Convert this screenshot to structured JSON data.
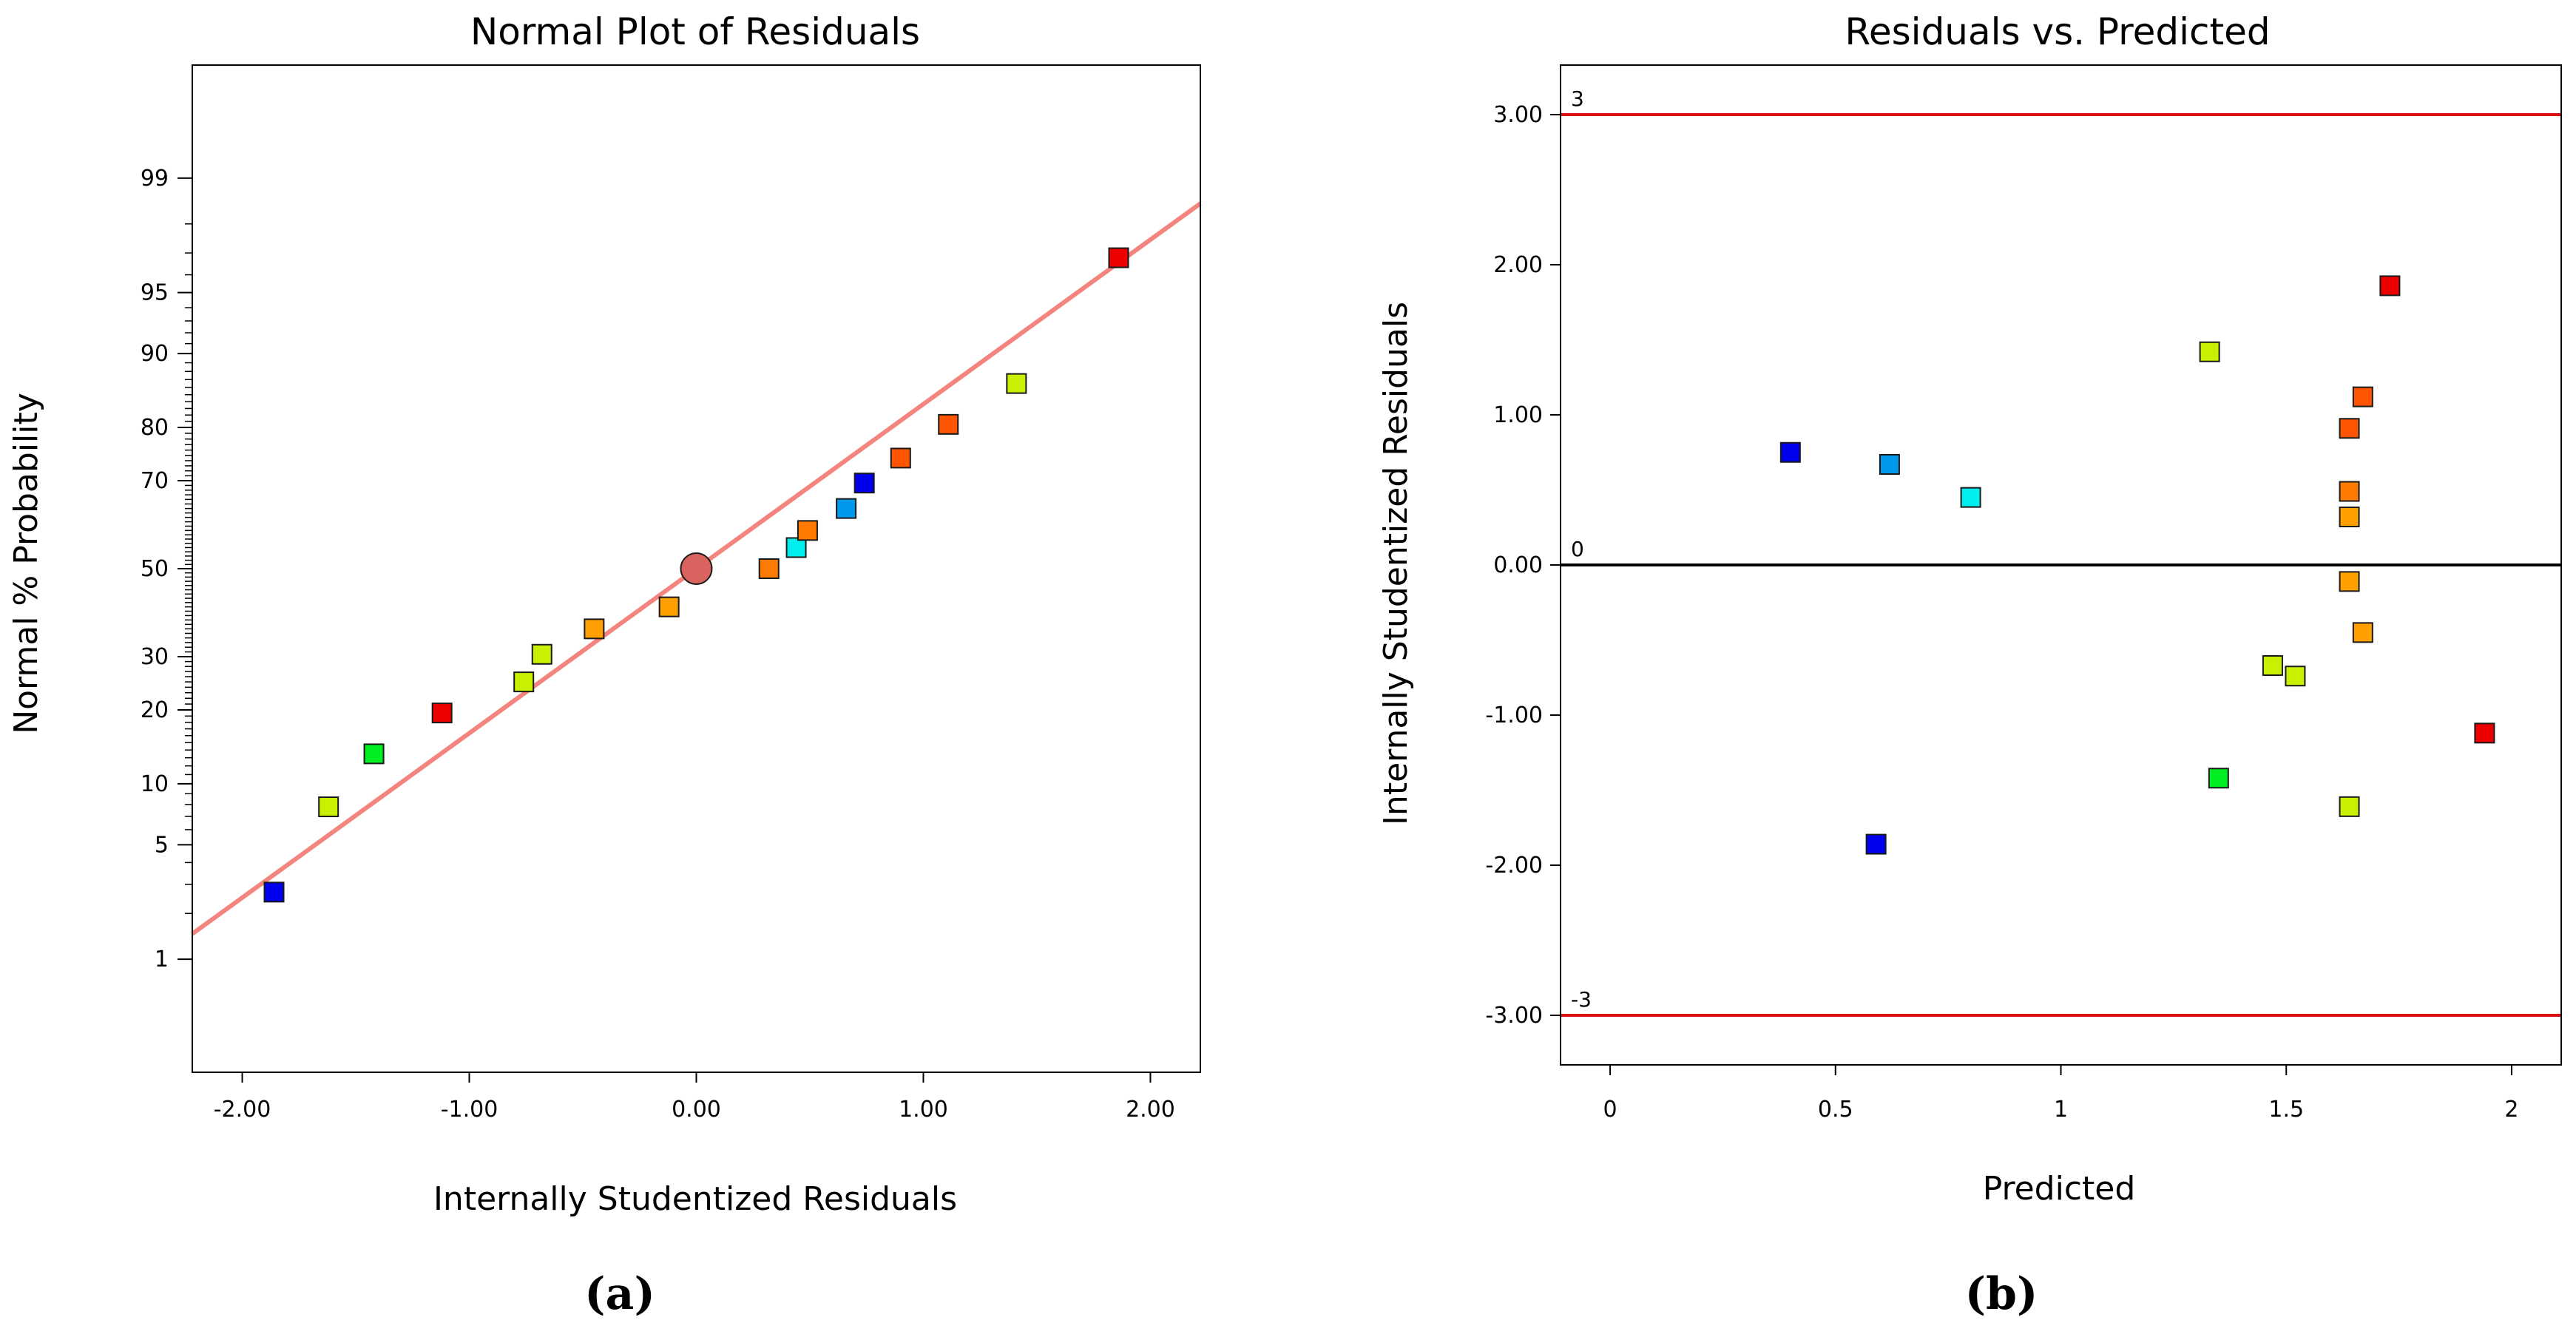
{
  "chart_data": [
    {
      "id": "a",
      "type": "scatter",
      "title": "Normal Plot of Residuals",
      "xlabel": "Internally Studentized Residuals",
      "ylabel": "Normal % Probability",
      "caption": "(a)",
      "xlim": [
        -2.22,
        2.22
      ],
      "y_scale": "normal-probability",
      "ylim_z": [
        -3.0,
        3.0
      ],
      "x_ticks": [
        -2.0,
        -1.0,
        0.0,
        1.0,
        2.0
      ],
      "x_tick_labels": [
        "-2.00",
        "-1.00",
        "0.00",
        "1.00",
        "2.00"
      ],
      "y_ticks": [
        1,
        5,
        10,
        20,
        30,
        50,
        70,
        80,
        90,
        95,
        99
      ],
      "y_tick_labels": [
        "1",
        "5",
        "10",
        "20",
        "30",
        "50",
        "70",
        "80",
        "90",
        "95",
        "99"
      ],
      "y_minor_ticks": [
        2,
        3,
        4,
        6,
        7,
        8,
        9,
        11,
        12,
        13,
        14,
        15,
        16,
        17,
        18,
        19,
        21,
        22,
        23,
        24,
        25,
        26,
        27,
        28,
        29,
        31,
        32,
        33,
        34,
        35,
        36,
        37,
        38,
        39,
        40,
        41,
        42,
        43,
        44,
        45,
        46,
        47,
        48,
        49,
        51,
        52,
        53,
        54,
        55,
        56,
        57,
        58,
        59,
        60,
        61,
        62,
        63,
        64,
        65,
        66,
        67,
        68,
        69,
        71,
        72,
        73,
        74,
        75,
        76,
        77,
        78,
        79,
        81,
        82,
        83,
        84,
        85,
        86,
        87,
        88,
        89,
        91,
        92,
        93,
        94,
        96,
        97,
        98
      ],
      "fit_line": {
        "x0": -2.22,
        "x1": 2.22,
        "z_per_x": 0.98,
        "color": "#f4857e"
      },
      "center_marker": {
        "x": 0.0,
        "p": 50,
        "color": "#d9635f"
      },
      "points": [
        {
          "x": -1.86,
          "p": 2.7,
          "color": "#0000ee"
        },
        {
          "x": -1.62,
          "p": 7.8,
          "color": "#c8f000"
        },
        {
          "x": -1.42,
          "p": 13.5,
          "color": "#00ee22"
        },
        {
          "x": -1.12,
          "p": 19.5,
          "color": "#ee0000"
        },
        {
          "x": -0.76,
          "p": 25.0,
          "color": "#c8f000"
        },
        {
          "x": -0.68,
          "p": 30.5,
          "color": "#c8f000"
        },
        {
          "x": -0.45,
          "p": 36.0,
          "color": "#ffa000"
        },
        {
          "x": -0.12,
          "p": 41.0,
          "color": "#ffa000"
        },
        {
          "x": 0.32,
          "p": 50.0,
          "color": "#ff7a00"
        },
        {
          "x": 0.44,
          "p": 55.0,
          "color": "#00eeee"
        },
        {
          "x": 0.49,
          "p": 59.0,
          "color": "#ff7a00"
        },
        {
          "x": 0.66,
          "p": 64.0,
          "color": "#0099ee"
        },
        {
          "x": 0.74,
          "p": 69.5,
          "color": "#0000ee"
        },
        {
          "x": 0.9,
          "p": 74.5,
          "color": "#ff5500"
        },
        {
          "x": 1.11,
          "p": 80.5,
          "color": "#ff5500"
        },
        {
          "x": 1.41,
          "p": 86.5,
          "color": "#c8f000"
        },
        {
          "x": 1.86,
          "p": 96.8,
          "color": "#ee0000"
        }
      ]
    },
    {
      "id": "b",
      "type": "scatter",
      "title": "Residuals vs. Predicted",
      "xlabel": "Predicted",
      "ylabel": "Internally Studentized Residuals",
      "caption": "(b)",
      "xlim": [
        -0.11,
        2.11
      ],
      "ylim": [
        -3.33,
        3.33
      ],
      "x_ticks": [
        0,
        0.5,
        1,
        1.5,
        2
      ],
      "x_tick_labels": [
        "0",
        "0.5",
        "1",
        "1.5",
        "2"
      ],
      "y_ticks": [
        -3,
        -2,
        -1,
        0,
        1,
        2,
        3
      ],
      "y_tick_labels": [
        "-3.00",
        "-2.00",
        "-1.00",
        "0.00",
        "1.00",
        "2.00",
        "3.00"
      ],
      "reference_lines": [
        {
          "y": 3,
          "label": "3",
          "color": "#e01010"
        },
        {
          "y": 0,
          "label": "0",
          "color": "#000000"
        },
        {
          "y": -3,
          "label": "-3",
          "color": "#e01010"
        }
      ],
      "points": [
        {
          "x": 0.4,
          "y": 0.75,
          "color": "#0000ee"
        },
        {
          "x": 0.62,
          "y": 0.67,
          "color": "#0099ee"
        },
        {
          "x": 0.8,
          "y": 0.45,
          "color": "#00eeee"
        },
        {
          "x": 0.59,
          "y": -1.86,
          "color": "#0000ee"
        },
        {
          "x": 1.33,
          "y": 1.42,
          "color": "#c8f000"
        },
        {
          "x": 1.35,
          "y": -1.42,
          "color": "#00ee22"
        },
        {
          "x": 1.47,
          "y": -0.67,
          "color": "#c8f000"
        },
        {
          "x": 1.52,
          "y": -0.74,
          "color": "#c8f000"
        },
        {
          "x": 1.64,
          "y": -1.61,
          "color": "#c8f000"
        },
        {
          "x": 1.64,
          "y": 0.91,
          "color": "#ff5500"
        },
        {
          "x": 1.67,
          "y": 1.12,
          "color": "#ff5500"
        },
        {
          "x": 1.64,
          "y": 0.49,
          "color": "#ff7a00"
        },
        {
          "x": 1.64,
          "y": 0.32,
          "color": "#ffa000"
        },
        {
          "x": 1.64,
          "y": -0.11,
          "color": "#ffa000"
        },
        {
          "x": 1.67,
          "y": -0.45,
          "color": "#ffa000"
        },
        {
          "x": 1.73,
          "y": 1.86,
          "color": "#ee0000"
        },
        {
          "x": 1.94,
          "y": -1.12,
          "color": "#ee0000"
        }
      ]
    }
  ]
}
